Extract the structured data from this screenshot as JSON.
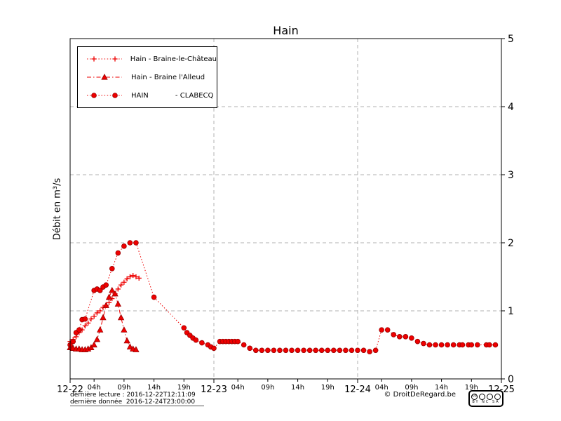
{
  "title": "Hain",
  "y_axis_label": "Débit en m³/s",
  "legend": {
    "items": [
      {
        "label": "Hain - Braine-le-Château",
        "marker": "plus",
        "line": "dotted"
      },
      {
        "label": "Hain - Braine l'Alleud",
        "marker": "triangle",
        "line": "dashdot"
      },
      {
        "label": "HAIN            - CLABECQ",
        "marker": "circle",
        "line": "dotted"
      }
    ]
  },
  "footer": {
    "last_reading": "dernière lecture : 2016-12-22T12:11:09",
    "last_data": "dernière donnée  2016-12-24T23:00:00",
    "copyright": "© DroitDeRegard.be",
    "license": {
      "logo": "CC",
      "terms": "BY NC SA"
    }
  },
  "chart_data": {
    "type": "line",
    "title": "Hain",
    "xlabel": "",
    "ylabel": "Débit en m³/s",
    "ylim": [
      0,
      5
    ],
    "xlim_hours": [
      0,
      72
    ],
    "y_ticks": [
      0,
      1,
      2,
      3,
      4,
      5
    ],
    "grid_y": [
      1,
      2,
      3,
      4
    ],
    "grid_x_hours": [
      24,
      48
    ],
    "x_major_ticks": [
      {
        "hour": 0,
        "label": "12-22"
      },
      {
        "hour": 24,
        "label": "12-23"
      },
      {
        "hour": 48,
        "label": "12-24"
      },
      {
        "hour": 72,
        "label": "12-25"
      }
    ],
    "x_minor_ticks": [
      {
        "hour": 4,
        "label": "04h"
      },
      {
        "hour": 9,
        "label": "09h"
      },
      {
        "hour": 14,
        "label": "14h"
      },
      {
        "hour": 19,
        "label": "19h"
      },
      {
        "hour": 28,
        "label": "04h"
      },
      {
        "hour": 33,
        "label": "09h"
      },
      {
        "hour": 38,
        "label": "14h"
      },
      {
        "hour": 43,
        "label": "19h"
      },
      {
        "hour": 52,
        "label": "04h"
      },
      {
        "hour": 57,
        "label": "09h"
      },
      {
        "hour": 62,
        "label": "14h"
      },
      {
        "hour": 67,
        "label": "19h"
      }
    ],
    "color": "#ee0000",
    "marker_edge": "#990000",
    "series": [
      {
        "name": "Hain - Braine-le-Château",
        "marker": "plus",
        "line_style": "dotted",
        "points": [
          [
            0,
            0.55
          ],
          [
            0.5,
            0.58
          ],
          [
            1,
            0.62
          ],
          [
            1.5,
            0.68
          ],
          [
            2,
            0.72
          ],
          [
            2.5,
            0.78
          ],
          [
            3,
            0.82
          ],
          [
            3.5,
            0.88
          ],
          [
            4,
            0.92
          ],
          [
            4.5,
            0.97
          ],
          [
            5,
            1.0
          ],
          [
            5.5,
            1.05
          ],
          [
            6,
            1.08
          ],
          [
            6.5,
            1.12
          ],
          [
            7,
            1.18
          ],
          [
            7.5,
            1.25
          ],
          [
            8,
            1.32
          ],
          [
            8.5,
            1.38
          ],
          [
            9,
            1.42
          ],
          [
            9.5,
            1.47
          ],
          [
            10,
            1.5
          ],
          [
            10.5,
            1.52
          ],
          [
            11,
            1.5
          ],
          [
            11.5,
            1.48
          ]
        ]
      },
      {
        "name": "Hain - Braine l'Alleud",
        "marker": "triangle",
        "line_style": "dashdot",
        "points": [
          [
            0,
            0.46
          ],
          [
            0.5,
            0.45
          ],
          [
            1,
            0.44
          ],
          [
            1.5,
            0.44
          ],
          [
            2,
            0.43
          ],
          [
            2.5,
            0.43
          ],
          [
            3,
            0.44
          ],
          [
            3.5,
            0.46
          ],
          [
            4,
            0.5
          ],
          [
            4.5,
            0.58
          ],
          [
            5,
            0.72
          ],
          [
            5.5,
            0.9
          ],
          [
            6,
            1.08
          ],
          [
            6.5,
            1.2
          ],
          [
            7,
            1.3
          ],
          [
            7.5,
            1.25
          ],
          [
            8,
            1.1
          ],
          [
            8.5,
            0.9
          ],
          [
            9,
            0.72
          ],
          [
            9.5,
            0.56
          ],
          [
            10,
            0.47
          ],
          [
            10.5,
            0.44
          ],
          [
            11,
            0.43
          ]
        ]
      },
      {
        "name": "HAIN - CLABECQ",
        "marker": "circle",
        "line_style": "dotted",
        "points": [
          [
            0,
            0.5
          ],
          [
            0.5,
            0.55
          ],
          [
            1,
            0.68
          ],
          [
            1.5,
            0.72
          ],
          [
            2,
            0.87
          ],
          [
            2.5,
            0.88
          ],
          [
            4,
            1.3
          ],
          [
            4.5,
            1.32
          ],
          [
            5,
            1.3
          ],
          [
            5.5,
            1.35
          ],
          [
            6,
            1.38
          ],
          [
            7,
            1.62
          ],
          [
            8,
            1.85
          ],
          [
            9,
            1.95
          ],
          [
            10,
            2.0
          ],
          [
            11,
            2.0
          ],
          [
            14,
            1.2
          ],
          [
            19,
            0.75
          ],
          [
            19.5,
            0.68
          ],
          [
            20,
            0.64
          ],
          [
            20.5,
            0.6
          ],
          [
            21,
            0.57
          ],
          [
            22,
            0.53
          ],
          [
            23,
            0.5
          ],
          [
            23.5,
            0.47
          ],
          [
            24,
            0.45
          ],
          [
            25,
            0.55
          ],
          [
            25.5,
            0.55
          ],
          [
            26,
            0.55
          ],
          [
            26.5,
            0.55
          ],
          [
            27,
            0.55
          ],
          [
            27.5,
            0.55
          ],
          [
            28,
            0.55
          ],
          [
            29,
            0.5
          ],
          [
            30,
            0.45
          ],
          [
            31,
            0.42
          ],
          [
            32,
            0.42
          ],
          [
            33,
            0.42
          ],
          [
            34,
            0.42
          ],
          [
            35,
            0.42
          ],
          [
            36,
            0.42
          ],
          [
            37,
            0.42
          ],
          [
            38,
            0.42
          ],
          [
            39,
            0.42
          ],
          [
            40,
            0.42
          ],
          [
            41,
            0.42
          ],
          [
            42,
            0.42
          ],
          [
            43,
            0.42
          ],
          [
            44,
            0.42
          ],
          [
            45,
            0.42
          ],
          [
            46,
            0.42
          ],
          [
            47,
            0.42
          ],
          [
            48,
            0.42
          ],
          [
            49,
            0.42
          ],
          [
            50,
            0.4
          ],
          [
            51,
            0.42
          ],
          [
            52,
            0.72
          ],
          [
            53,
            0.72
          ],
          [
            54,
            0.65
          ],
          [
            55,
            0.62
          ],
          [
            56,
            0.62
          ],
          [
            57,
            0.6
          ],
          [
            58,
            0.55
          ],
          [
            59,
            0.52
          ],
          [
            60,
            0.5
          ],
          [
            61,
            0.5
          ],
          [
            62,
            0.5
          ],
          [
            63,
            0.5
          ],
          [
            64,
            0.5
          ],
          [
            65,
            0.5
          ],
          [
            65.5,
            0.5
          ],
          [
            66.5,
            0.5
          ],
          [
            67,
            0.5
          ],
          [
            68,
            0.5
          ],
          [
            69.5,
            0.5
          ],
          [
            70,
            0.5
          ],
          [
            71,
            0.5
          ]
        ]
      }
    ]
  }
}
